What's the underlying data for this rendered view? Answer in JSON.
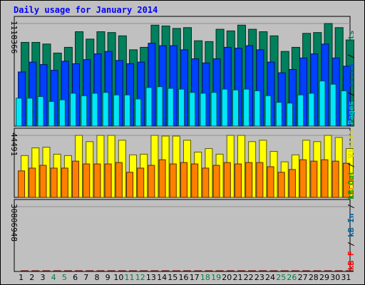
{
  "title": "Daily usage for January 2014",
  "chart_data": {
    "type": "bar",
    "title": "Daily usage for January 2014",
    "categories": [
      "1",
      "2",
      "3",
      "4",
      "5",
      "6",
      "7",
      "8",
      "9",
      "10",
      "11",
      "12",
      "13",
      "14",
      "15",
      "16",
      "17",
      "18",
      "19",
      "20",
      "21",
      "22",
      "23",
      "24",
      "25",
      "26",
      "27",
      "28",
      "29",
      "30",
      "31"
    ],
    "weekend_days": [
      "4",
      "5",
      "11",
      "12",
      "18",
      "19",
      "25",
      "26"
    ],
    "panels": [
      {
        "name": "hits-files-pages",
        "tick_label": "1118366",
        "ymax": 1250000,
        "legend": [
          {
            "text": "Pages",
            "color": "#00c8d8"
          },
          {
            "text": " / ",
            "color": "#000000"
          },
          {
            "text": "Files",
            "color": "#0040ff"
          },
          {
            "text": " / ",
            "color": "#000000"
          },
          {
            "text": "Hits",
            "color": "#008060"
          }
        ],
        "series": [
          {
            "name": "Hits",
            "color": "#00805c",
            "values": [
              1020000,
              1020000,
              1000000,
              890000,
              960000,
              1150000,
              1060000,
              1150000,
              1140000,
              1100000,
              930000,
              960000,
              1230000,
              1220000,
              1190000,
              1200000,
              1040000,
              1030000,
              1180000,
              1160000,
              1230000,
              1180000,
              1150000,
              1100000,
              910000,
              960000,
              1130000,
              1140000,
              1260000,
              1200000,
              1050000
            ]
          },
          {
            "name": "Files",
            "color": "#0040ff",
            "values": [
              660000,
              780000,
              750000,
              680000,
              790000,
              760000,
              810000,
              880000,
              910000,
              800000,
              760000,
              780000,
              1010000,
              980000,
              980000,
              930000,
              820000,
              770000,
              820000,
              960000,
              950000,
              980000,
              930000,
              780000,
              650000,
              690000,
              830000,
              880000,
              1000000,
              830000,
              730000
            ]
          },
          {
            "name": "Pages",
            "color": "#00e8f8",
            "values": [
              340000,
              340000,
              360000,
              300000,
              320000,
              400000,
              370000,
              400000,
              410000,
              380000,
              380000,
              330000,
              470000,
              480000,
              460000,
              450000,
              410000,
              400000,
              410000,
              450000,
              440000,
              450000,
              430000,
              370000,
              290000,
              280000,
              380000,
              400000,
              550000,
              510000,
              430000
            ]
          }
        ]
      },
      {
        "name": "visits-sites",
        "tick_label": "44491",
        "ymax": 44491,
        "legend": [
          {
            "text": "Sites",
            "color": "#ff8000"
          },
          {
            "text": " / ",
            "color": "#000000"
          },
          {
            "text": "Visits",
            "color": "#d8d800"
          }
        ],
        "series": [
          {
            "name": "Visits",
            "color": "#ffff00",
            "values": [
              30000,
              35500,
              36000,
              31000,
              30000,
              44500,
              40000,
              44500,
              44500,
              41000,
              30500,
              31000,
              44500,
              44000,
              44000,
              41000,
              32500,
              35000,
              31000,
              44500,
              44500,
              40000,
              41000,
              33000,
              25500,
              30500,
              41000,
              40000,
              44500,
              43000,
              35000
            ]
          },
          {
            "name": "Sites",
            "color": "#ff8000",
            "values": [
              19000,
              21000,
              23000,
              21000,
              21000,
              26000,
              24000,
              24000,
              24000,
              25000,
              18000,
              21000,
              23000,
              27000,
              24000,
              25000,
              24000,
              21000,
              23000,
              25000,
              24000,
              25000,
              25000,
              22000,
              18000,
              20000,
              27000,
              26000,
              27000,
              26000,
              24500
            ]
          }
        ]
      },
      {
        "name": "kbf",
        "tick_label": "30806948",
        "ymax": 30806948,
        "legend": [
          {
            "text": "kB F",
            "color": "#ff0000"
          },
          {
            "text": " / ",
            "color": "#000000"
          },
          {
            "text": "kB In",
            "color": "#0060a0"
          },
          {
            "text": " / ",
            "color": "#000000"
          },
          {
            "text": "kB Out",
            "color": "#00a000"
          }
        ],
        "series": [
          {
            "name": "kB F",
            "color": "#ee0000",
            "values": [
              18100,
              17500,
              17900,
              17200,
              16300,
              20500,
              19100,
              19600,
              23200,
              20800,
              18100,
              18800,
              25100,
              26500,
              25600,
              22200,
              21400,
              19100,
              19200,
              25100,
              32500,
              33000,
              30000,
              32000,
              25500,
              25500,
              32000,
              23000,
              27500,
              22500,
              20500
            ]
          }
        ]
      }
    ]
  }
}
